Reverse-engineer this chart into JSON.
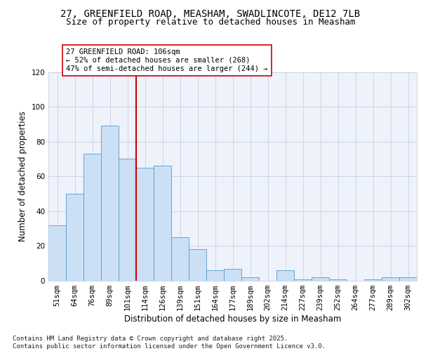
{
  "title_line1": "27, GREENFIELD ROAD, MEASHAM, SWADLINCOTE, DE12 7LB",
  "title_line2": "Size of property relative to detached houses in Measham",
  "xlabel": "Distribution of detached houses by size in Measham",
  "ylabel": "Number of detached properties",
  "categories": [
    "51sqm",
    "64sqm",
    "76sqm",
    "89sqm",
    "101sqm",
    "114sqm",
    "126sqm",
    "139sqm",
    "151sqm",
    "164sqm",
    "177sqm",
    "189sqm",
    "202sqm",
    "214sqm",
    "227sqm",
    "239sqm",
    "252sqm",
    "264sqm",
    "277sqm",
    "289sqm",
    "302sqm"
  ],
  "values": [
    32,
    50,
    73,
    89,
    70,
    65,
    66,
    25,
    18,
    6,
    7,
    2,
    0,
    6,
    1,
    2,
    1,
    0,
    1,
    2,
    2
  ],
  "bar_color": "#cce0f5",
  "bar_edge_color": "#5599cc",
  "grid_color": "#c8d0e0",
  "background_color": "#eef2fb",
  "annotation_text": "27 GREENFIELD ROAD: 106sqm\n← 52% of detached houses are smaller (268)\n47% of semi-detached houses are larger (244) →",
  "vline_color": "#cc0000",
  "ylim": [
    0,
    120
  ],
  "yticks": [
    0,
    20,
    40,
    60,
    80,
    100,
    120
  ],
  "footnote": "Contains HM Land Registry data © Crown copyright and database right 2025.\nContains public sector information licensed under the Open Government Licence v3.0.",
  "title_fontsize": 10,
  "subtitle_fontsize": 9,
  "axis_label_fontsize": 8.5,
  "tick_fontsize": 7.5,
  "annotation_fontsize": 7.5,
  "footnote_fontsize": 6.5
}
